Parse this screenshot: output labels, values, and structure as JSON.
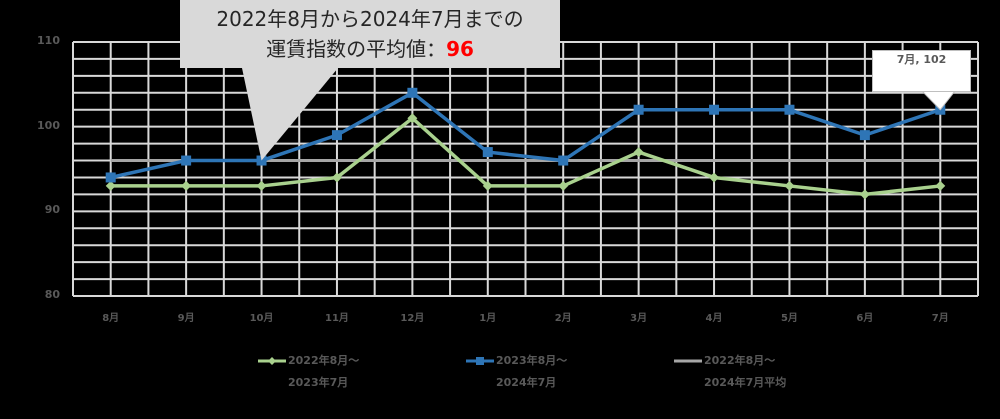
{
  "chart_data": {
    "type": "line",
    "title": "",
    "categories": [
      "8月",
      "9月",
      "10月",
      "11月",
      "12月",
      "1月",
      "2月",
      "3月",
      "4月",
      "5月",
      "6月",
      "7月"
    ],
    "series": [
      {
        "name": "2022年8月～2023年7月",
        "color": "#a9d18e",
        "marker": "diamond",
        "values": [
          93,
          93,
          93,
          94,
          101,
          93,
          93,
          97,
          94,
          93,
          92,
          93
        ]
      },
      {
        "name": "2023年8月～2024年7月",
        "color": "#2e75b6",
        "marker": "square",
        "values": [
          94,
          96,
          96,
          99,
          104,
          97,
          96,
          102,
          102,
          102,
          99,
          102
        ]
      },
      {
        "name": "2022年8月～2024年7月平均",
        "color": "#a6a6a6",
        "marker": "none",
        "values": [
          96,
          96,
          96,
          96,
          96,
          96,
          96,
          96,
          96,
          96,
          96,
          96
        ]
      }
    ],
    "xlabel": "",
    "ylabel": "",
    "ylim": [
      80,
      110
    ],
    "yticks": [
      80,
      90,
      100,
      110
    ],
    "grid": true,
    "legend_position": "bottom",
    "annotations": [
      {
        "text": "2022年8月から2024年7月までの運賃指数の平均値：96",
        "target_category": "10月"
      },
      {
        "text": "7月, 102",
        "target_category": "7月",
        "series": "2023年8月～2024年7月"
      }
    ]
  },
  "callout": {
    "line1": "2022年8月から2024年7月までの",
    "line2_prefix": "運賃指数の平均値：",
    "line2_value": "96"
  },
  "data_label": {
    "text": "7月, 102"
  },
  "legend": {
    "items": [
      {
        "line1": "2022年8月～",
        "line2": "2023年7月"
      },
      {
        "line1": "2023年8月～",
        "line2": "2024年7月"
      },
      {
        "line1": "2022年8月～",
        "line2": "2024年7月平均"
      }
    ]
  },
  "colors": {
    "background": "#000000",
    "grid": "#d9d9d9",
    "series1": "#a9d18e",
    "series2": "#2e75b6",
    "average": "#a6a6a6",
    "highlight": "#ff0000"
  }
}
